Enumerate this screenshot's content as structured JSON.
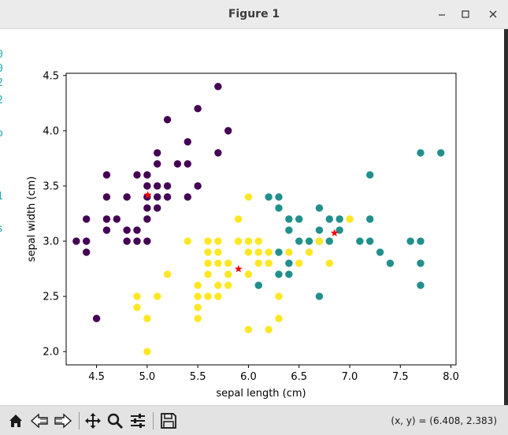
{
  "window": {
    "title": "Figure 1",
    "controls": [
      "minimize-icon",
      "maximize-icon",
      "close-icon"
    ]
  },
  "toolbar": {
    "tools": [
      "home-icon",
      "back-icon",
      "forward-icon",
      "pan-icon",
      "zoom-icon",
      "configure-icon",
      "save-icon"
    ],
    "coordinates": "(x, y) = (6.408, 2.383)"
  },
  "colors": {
    "cluster_0": "#440154",
    "cluster_1": "#21908d",
    "cluster_2": "#fde725",
    "centroid": "#ff0000"
  },
  "chart_data": {
    "type": "scatter",
    "xlabel": "sepal length (cm)",
    "ylabel": "sepal width (cm)",
    "xlim": [
      4.2,
      8.05
    ],
    "ylim": [
      1.88,
      4.52
    ],
    "xticks": [
      "4.5",
      "5.0",
      "5.5",
      "6.0",
      "6.5",
      "7.0",
      "7.5",
      "8.0"
    ],
    "yticks": [
      "2.0",
      "2.5",
      "3.0",
      "3.5",
      "4.0",
      "4.5"
    ],
    "grid": false,
    "series": [
      {
        "color": "#440154",
        "points": [
          [
            4.3,
            3.0
          ],
          [
            4.4,
            2.9
          ],
          [
            4.4,
            3.0
          ],
          [
            4.4,
            3.2
          ],
          [
            4.5,
            2.3
          ],
          [
            4.6,
            3.1
          ],
          [
            4.6,
            3.2
          ],
          [
            4.6,
            3.4
          ],
          [
            4.6,
            3.6
          ],
          [
            4.7,
            3.2
          ],
          [
            4.8,
            3.0
          ],
          [
            4.8,
            3.1
          ],
          [
            4.8,
            3.4
          ],
          [
            4.9,
            3.0
          ],
          [
            4.9,
            3.1
          ],
          [
            4.9,
            3.6
          ],
          [
            5.0,
            3.0
          ],
          [
            5.0,
            3.2
          ],
          [
            5.0,
            3.3
          ],
          [
            5.0,
            3.4
          ],
          [
            5.0,
            3.5
          ],
          [
            5.0,
            3.6
          ],
          [
            5.1,
            3.3
          ],
          [
            5.1,
            3.4
          ],
          [
            5.1,
            3.5
          ],
          [
            5.1,
            3.7
          ],
          [
            5.1,
            3.8
          ],
          [
            5.2,
            3.4
          ],
          [
            5.2,
            3.5
          ],
          [
            5.2,
            4.1
          ],
          [
            5.3,
            3.7
          ],
          [
            5.4,
            3.4
          ],
          [
            5.4,
            3.7
          ],
          [
            5.4,
            3.9
          ],
          [
            5.5,
            3.5
          ],
          [
            5.5,
            4.2
          ],
          [
            5.7,
            3.8
          ],
          [
            5.7,
            4.4
          ],
          [
            5.8,
            4.0
          ]
        ]
      },
      {
        "color": "#21908d",
        "points": [
          [
            6.1,
            2.6
          ],
          [
            6.2,
            3.4
          ],
          [
            6.3,
            2.7
          ],
          [
            6.3,
            2.9
          ],
          [
            6.3,
            3.3
          ],
          [
            6.3,
            3.4
          ],
          [
            6.4,
            2.7
          ],
          [
            6.4,
            2.8
          ],
          [
            6.4,
            3.1
          ],
          [
            6.4,
            3.2
          ],
          [
            6.5,
            3.0
          ],
          [
            6.5,
            3.2
          ],
          [
            6.6,
            3.0
          ],
          [
            6.7,
            2.5
          ],
          [
            6.7,
            3.0
          ],
          [
            6.7,
            3.1
          ],
          [
            6.7,
            3.3
          ],
          [
            6.8,
            3.0
          ],
          [
            6.8,
            3.2
          ],
          [
            6.9,
            3.1
          ],
          [
            6.9,
            3.2
          ],
          [
            7.1,
            3.0
          ],
          [
            7.2,
            3.0
          ],
          [
            7.2,
            3.2
          ],
          [
            7.2,
            3.6
          ],
          [
            7.3,
            2.9
          ],
          [
            7.4,
            2.8
          ],
          [
            7.6,
            3.0
          ],
          [
            7.7,
            2.6
          ],
          [
            7.7,
            2.8
          ],
          [
            7.7,
            3.0
          ],
          [
            7.7,
            3.8
          ],
          [
            7.9,
            3.8
          ]
        ]
      },
      {
        "color": "#fde725",
        "points": [
          [
            4.9,
            2.5
          ],
          [
            4.9,
            2.4
          ],
          [
            5.0,
            2.0
          ],
          [
            5.0,
            2.3
          ],
          [
            5.1,
            2.5
          ],
          [
            5.2,
            2.7
          ],
          [
            5.4,
            3.0
          ],
          [
            5.5,
            2.3
          ],
          [
            5.5,
            2.4
          ],
          [
            5.5,
            2.5
          ],
          [
            5.5,
            2.6
          ],
          [
            5.6,
            2.5
          ],
          [
            5.6,
            2.7
          ],
          [
            5.6,
            2.8
          ],
          [
            5.6,
            2.9
          ],
          [
            5.6,
            3.0
          ],
          [
            5.7,
            2.5
          ],
          [
            5.7,
            2.6
          ],
          [
            5.7,
            2.8
          ],
          [
            5.7,
            2.9
          ],
          [
            5.7,
            3.0
          ],
          [
            5.8,
            2.6
          ],
          [
            5.8,
            2.7
          ],
          [
            5.8,
            2.8
          ],
          [
            5.9,
            3.0
          ],
          [
            5.9,
            3.2
          ],
          [
            6.0,
            2.2
          ],
          [
            6.0,
            2.7
          ],
          [
            6.0,
            2.9
          ],
          [
            6.0,
            3.0
          ],
          [
            6.0,
            3.4
          ],
          [
            6.1,
            2.8
          ],
          [
            6.1,
            2.9
          ],
          [
            6.1,
            3.0
          ],
          [
            6.2,
            2.2
          ],
          [
            6.2,
            2.8
          ],
          [
            6.2,
            2.9
          ],
          [
            6.3,
            2.3
          ],
          [
            6.3,
            2.5
          ],
          [
            6.4,
            2.9
          ],
          [
            6.5,
            2.8
          ],
          [
            6.6,
            2.9
          ],
          [
            6.7,
            3.0
          ],
          [
            6.8,
            2.8
          ],
          [
            7.0,
            3.2
          ]
        ]
      }
    ],
    "centroids": [
      [
        5.006,
        3.418
      ],
      [
        6.85,
        3.074
      ],
      [
        5.902,
        2.748
      ]
    ]
  }
}
